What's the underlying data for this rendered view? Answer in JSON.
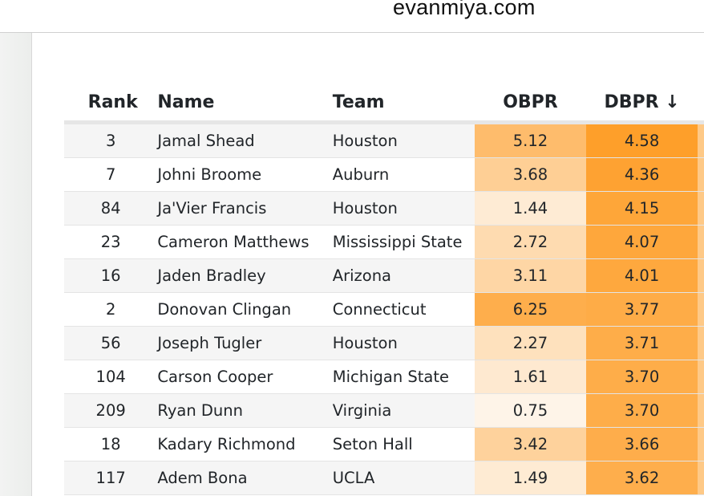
{
  "browser": {
    "url": "evanmiya.com"
  },
  "table": {
    "headers": {
      "rank": "Rank",
      "name": "Name",
      "team": "Team",
      "obpr": "OBPR",
      "dbpr": "DBPR ↓"
    },
    "color_scales": {
      "obpr": {
        "low": [
          0.75,
          "#fef4e8"
        ],
        "high": [
          6.25,
          "#feae4c"
        ]
      },
      "dbpr": {
        "low": [
          3.62,
          "#feae4c"
        ],
        "high": [
          4.58,
          "#fe9f2a"
        ]
      },
      "next_column": "#fec987"
    },
    "rows": [
      {
        "rank": "3",
        "name": "Jamal Shead",
        "team": "Houston",
        "obpr": "5.12",
        "dbpr": "4.58"
      },
      {
        "rank": "7",
        "name": "Johni Broome",
        "team": "Auburn",
        "obpr": "3.68",
        "dbpr": "4.36"
      },
      {
        "rank": "84",
        "name": "Ja'Vier Francis",
        "team": "Houston",
        "obpr": "1.44",
        "dbpr": "4.15"
      },
      {
        "rank": "23",
        "name": "Cameron Matthews",
        "team": "Mississippi State",
        "obpr": "2.72",
        "dbpr": "4.07"
      },
      {
        "rank": "16",
        "name": "Jaden Bradley",
        "team": "Arizona",
        "obpr": "3.11",
        "dbpr": "4.01"
      },
      {
        "rank": "2",
        "name": "Donovan Clingan",
        "team": "Connecticut",
        "obpr": "6.25",
        "dbpr": "3.77"
      },
      {
        "rank": "56",
        "name": "Joseph Tugler",
        "team": "Houston",
        "obpr": "2.27",
        "dbpr": "3.71"
      },
      {
        "rank": "104",
        "name": "Carson Cooper",
        "team": "Michigan State",
        "obpr": "1.61",
        "dbpr": "3.70"
      },
      {
        "rank": "209",
        "name": "Ryan Dunn",
        "team": "Virginia",
        "obpr": "0.75",
        "dbpr": "3.70"
      },
      {
        "rank": "18",
        "name": "Kadary Richmond",
        "team": "Seton Hall",
        "obpr": "3.42",
        "dbpr": "3.66"
      },
      {
        "rank": "117",
        "name": "Adem Bona",
        "team": "UCLA",
        "obpr": "1.49",
        "dbpr": "3.62"
      }
    ]
  }
}
